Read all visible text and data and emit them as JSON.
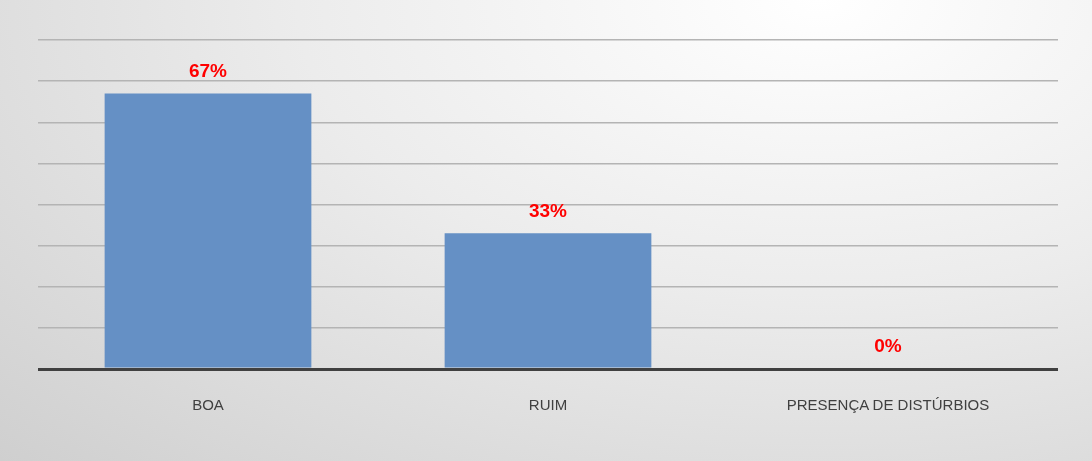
{
  "chart_data": {
    "type": "bar",
    "categories": [
      "BOA",
      "RUIM",
      "PRESENÇA DE DISTÚRBIOS"
    ],
    "values": [
      67,
      33,
      0
    ],
    "value_labels": [
      "67%",
      "33%",
      "0%"
    ],
    "color": "#6590c5",
    "ylim": [
      0,
      80
    ],
    "grid": "y",
    "tick_labels": "x"
  }
}
